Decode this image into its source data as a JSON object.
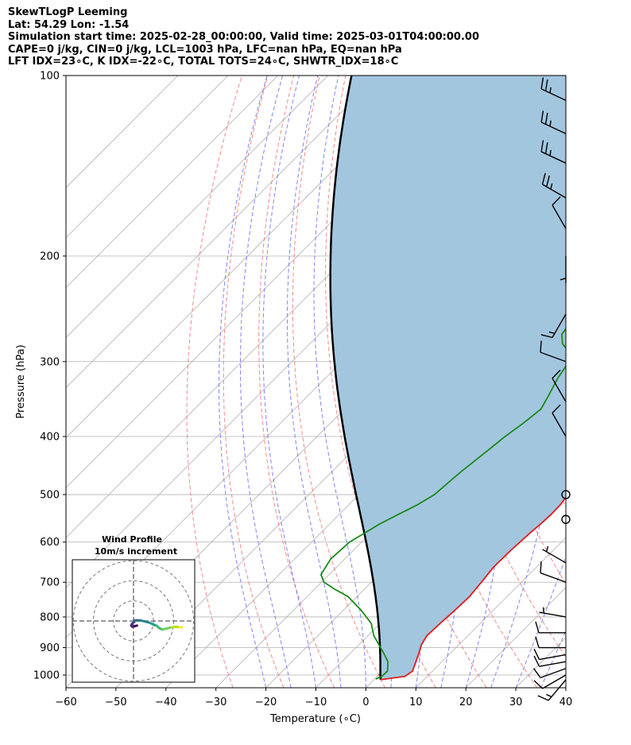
{
  "header": {
    "line1": "SkewTLogP Leeming",
    "line2": "Lat: 54.29   Lon: -1.54",
    "line3": "Simulation start time: 2025-02-28_00:00:00, Valid time: 2025-03-01T04:00:00.00",
    "line4": "CAPE=0 j/kg, CIN=0 j/kg, LCL=1003 hPa, LFC=nan hPa, EQ=nan hPa",
    "line5": "LFT IDX=23∘C, K IDX=-22∘C, TOTAL TOTS=24∘C, SHWTR_IDX=18∘C"
  },
  "chart_data": {
    "type": "skew-t",
    "xlabel": "Temperature (∘C)",
    "ylabel": "Pressure (hPa)",
    "xlim": [
      -60,
      40
    ],
    "plim": [
      1050,
      100
    ],
    "x_ticks": [
      -60,
      -50,
      -40,
      -30,
      -20,
      -10,
      0,
      10,
      20,
      30,
      40
    ],
    "x_tick_labels": [
      "−60",
      "−50",
      "−40",
      "−30",
      "−20",
      "−10",
      "0",
      "10",
      "20",
      "30",
      "40"
    ],
    "p_ticks": [
      1000,
      900,
      800,
      700,
      600,
      500,
      400,
      300,
      200,
      100
    ],
    "p_tick_labels": [
      "1000",
      "900",
      "800",
      "700",
      "600",
      "500",
      "400",
      "300",
      "200",
      "100"
    ],
    "grid": true,
    "colors": {
      "temperature": "#e31a1c",
      "dewpoint": "#1a8a1a",
      "parcel": "#000000",
      "shade": "#a3c6df",
      "dry_adiabat": "#f26b6b",
      "moist_adiabat": "#6a6ef0",
      "isotherm": "#b0b0b0",
      "grid": "#b0b0b0"
    },
    "temperature": {
      "p": [
        1018,
        1005,
        985,
        950,
        920,
        890,
        860,
        820,
        780,
        740,
        700,
        660,
        620,
        580,
        560,
        540,
        520,
        500,
        480,
        460,
        440,
        420,
        400,
        380,
        360,
        340,
        320,
        300,
        280,
        260,
        240,
        220,
        210,
        200,
        190,
        180,
        170,
        160,
        150,
        140,
        130,
        120,
        110,
        100
      ],
      "t": [
        1.3,
        5.5,
        6.0,
        4.8,
        3.7,
        2.5,
        1.8,
        2.0,
        2.3,
        2.5,
        2.0,
        1.4,
        1.5,
        1.9,
        2.2,
        2.4,
        2.3,
        1.8,
        0.8,
        -0.2,
        -1.2,
        -2.3,
        -3.4,
        -4.8,
        -6.4,
        -8.2,
        -10.0,
        -11.7,
        -13.4,
        -15.3,
        -17.3,
        -19.5,
        -20.7,
        -21.8,
        -21.6,
        -20.9,
        -21.8,
        -23.0,
        -24.3,
        -25.3,
        -25.6,
        -25.7,
        -26.2,
        -26.8
      ]
    },
    "dewpoint": {
      "p": [
        1015,
        1005,
        985,
        950,
        920,
        890,
        860,
        820,
        780,
        740,
        720,
        700,
        680,
        660,
        640,
        600,
        580,
        560,
        540,
        520,
        500,
        460,
        420,
        400,
        380,
        360,
        340,
        320,
        300,
        290,
        280,
        270,
        260,
        250,
        240,
        230,
        220,
        210,
        200,
        190,
        180,
        170,
        160,
        150,
        140,
        130,
        120,
        110,
        100
      ],
      "t": [
        0.2,
        0.9,
        1.0,
        -0.8,
        -3.3,
        -6.0,
        -8.8,
        -11.8,
        -16.4,
        -21.8,
        -25.8,
        -29.5,
        -31.6,
        -32.2,
        -32.8,
        -32.4,
        -31.2,
        -30.0,
        -28.2,
        -26.3,
        -24.9,
        -24.2,
        -23.0,
        -22.4,
        -21.4,
        -20.7,
        -22.0,
        -23.5,
        -24.6,
        -26.2,
        -29.5,
        -31.5,
        -32.0,
        -32.0,
        -32.4,
        -33.5,
        -34.7,
        -36.0,
        -37.4,
        -36.2,
        -35.8,
        -36.6,
        -37.7,
        -38.8,
        -39.8,
        -40.0,
        -40.4,
        -40.8,
        -42.0
      ]
    },
    "parcel": {
      "p": [
        1018,
        1005,
        1003
      ],
      "t": [
        1.3,
        0.7,
        0.5
      ],
      "lapse": "moist-adiabatic above LCL to 100 hPa"
    },
    "wind_barbs": [
      {
        "p": 1018,
        "speed_kt": 15,
        "dir_deg": 220
      },
      {
        "p": 1000,
        "speed_kt": 10,
        "dir_deg": 240
      },
      {
        "p": 975,
        "speed_kt": 10,
        "dir_deg": 250
      },
      {
        "p": 950,
        "speed_kt": 10,
        "dir_deg": 260
      },
      {
        "p": 925,
        "speed_kt": 10,
        "dir_deg": 260
      },
      {
        "p": 900,
        "speed_kt": 10,
        "dir_deg": 270
      },
      {
        "p": 850,
        "speed_kt": 10,
        "dir_deg": 270
      },
      {
        "p": 800,
        "speed_kt": 5,
        "dir_deg": 280
      },
      {
        "p": 700,
        "speed_kt": 10,
        "dir_deg": 290
      },
      {
        "p": 650,
        "speed_kt": 5,
        "dir_deg": 300
      },
      {
        "p": 550,
        "speed_kt": 0,
        "dir_deg": 0
      },
      {
        "p": 500,
        "speed_kt": 0,
        "dir_deg": 0
      },
      {
        "p": 400,
        "speed_kt": 10,
        "dir_deg": 330
      },
      {
        "p": 350,
        "speed_kt": 10,
        "dir_deg": 330
      },
      {
        "p": 300,
        "speed_kt": 10,
        "dir_deg": 290
      },
      {
        "p": 250,
        "speed_kt": 15,
        "dir_deg": 210
      },
      {
        "p": 200,
        "speed_kt": 5,
        "dir_deg": 180
      },
      {
        "p": 180,
        "speed_kt": 10,
        "dir_deg": 330
      },
      {
        "p": 160,
        "speed_kt": 25,
        "dir_deg": 300
      },
      {
        "p": 140,
        "speed_kt": 25,
        "dir_deg": 295
      },
      {
        "p": 125,
        "speed_kt": 25,
        "dir_deg": 295
      },
      {
        "p": 110,
        "speed_kt": 25,
        "dir_deg": 295
      }
    ],
    "inset": {
      "title": "Wind Profile",
      "subtitle": "10m/s increment",
      "rings_ms": [
        10,
        20,
        30
      ],
      "hodograph_u_ms": [
        3,
        1,
        -1,
        -2,
        -1,
        0.5,
        1,
        3,
        6,
        10,
        14,
        18,
        20,
        22,
        25,
        29,
        33,
        37,
        40,
        42
      ],
      "hodograph_v_ms": [
        -4,
        -4.5,
        -5,
        -4,
        -2,
        -1,
        0.5,
        0.5,
        0.5,
        -0.5,
        -1.5,
        -3.5,
        -4,
        -6,
        -7.5,
        -6.5,
        -5.5,
        -5,
        -5.5,
        -5.5
      ],
      "colormap": "viridis"
    }
  }
}
